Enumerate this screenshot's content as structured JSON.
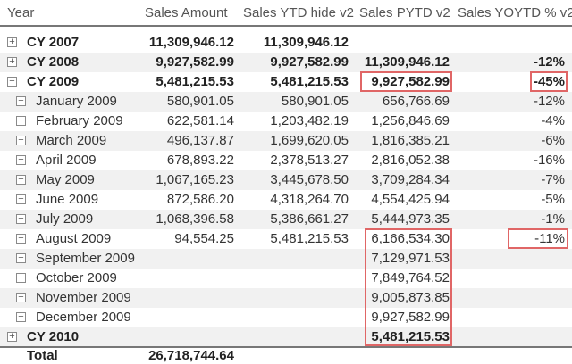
{
  "headers": {
    "year": "Year",
    "sales_amount": "Sales Amount",
    "sales_ytd": "Sales YTD hide v2",
    "sales_pytd": "Sales PYTD v2",
    "sales_yoytd": "Sales YOYTD % v2"
  },
  "icons": {
    "expand": "plus-box-icon",
    "collapse": "minus-box-icon"
  },
  "rows": [
    {
      "label": "CY 2007",
      "toggle": "+",
      "sa": "11,309,946.12",
      "ytd": "11,309,946.12",
      "pytd": "",
      "yoy": ""
    },
    {
      "label": "CY 2008",
      "toggle": "+",
      "sa": "9,927,582.99",
      "ytd": "9,927,582.99",
      "pytd": "11,309,946.12",
      "yoy": "-12%"
    },
    {
      "label": "CY 2009",
      "toggle": "−",
      "sa": "5,481,215.53",
      "ytd": "5,481,215.53",
      "pytd": "9,927,582.99",
      "yoy": "-45%"
    },
    {
      "label": "January 2009",
      "toggle": "+",
      "sa": "580,901.05",
      "ytd": "580,901.05",
      "pytd": "656,766.69",
      "yoy": "-12%"
    },
    {
      "label": "February 2009",
      "toggle": "+",
      "sa": "622,581.14",
      "ytd": "1,203,482.19",
      "pytd": "1,256,846.69",
      "yoy": "-4%"
    },
    {
      "label": "March 2009",
      "toggle": "+",
      "sa": "496,137.87",
      "ytd": "1,699,620.05",
      "pytd": "1,816,385.21",
      "yoy": "-6%"
    },
    {
      "label": "April 2009",
      "toggle": "+",
      "sa": "678,893.22",
      "ytd": "2,378,513.27",
      "pytd": "2,816,052.38",
      "yoy": "-16%"
    },
    {
      "label": "May 2009",
      "toggle": "+",
      "sa": "1,067,165.23",
      "ytd": "3,445,678.50",
      "pytd": "3,709,284.34",
      "yoy": "-7%"
    },
    {
      "label": "June 2009",
      "toggle": "+",
      "sa": "872,586.20",
      "ytd": "4,318,264.70",
      "pytd": "4,554,425.94",
      "yoy": "-5%"
    },
    {
      "label": "July 2009",
      "toggle": "+",
      "sa": "1,068,396.58",
      "ytd": "5,386,661.27",
      "pytd": "5,444,973.35",
      "yoy": "-1%"
    },
    {
      "label": "August 2009",
      "toggle": "+",
      "sa": "94,554.25",
      "ytd": "5,481,215.53",
      "pytd": "6,166,534.30",
      "yoy": "-11%"
    },
    {
      "label": "September 2009",
      "toggle": "+",
      "sa": "",
      "ytd": "",
      "pytd": "7,129,971.53",
      "yoy": ""
    },
    {
      "label": "October 2009",
      "toggle": "+",
      "sa": "",
      "ytd": "",
      "pytd": "7,849,764.52",
      "yoy": ""
    },
    {
      "label": "November 2009",
      "toggle": "+",
      "sa": "",
      "ytd": "",
      "pytd": "9,005,873.85",
      "yoy": ""
    },
    {
      "label": "December 2009",
      "toggle": "+",
      "sa": "",
      "ytd": "",
      "pytd": "9,927,582.99",
      "yoy": ""
    },
    {
      "label": "CY 2010",
      "toggle": "+",
      "sa": "",
      "ytd": "",
      "pytd": "5,481,215.53",
      "yoy": ""
    },
    {
      "label": "Total",
      "toggle": "",
      "sa": "26,718,744.64",
      "ytd": "",
      "pytd": "",
      "yoy": ""
    }
  ],
  "colors": {
    "highlight": "#e06666",
    "alt_row": "#f1f1f1",
    "rule": "#777777"
  }
}
